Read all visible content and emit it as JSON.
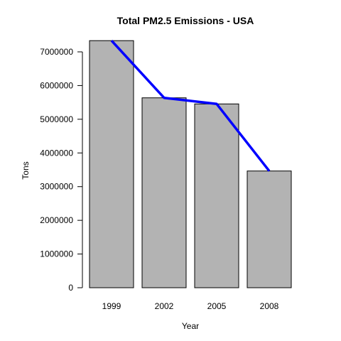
{
  "chart_data": {
    "type": "bar",
    "title": "Total PM2.5 Emissions - USA",
    "xlabel": "Year",
    "ylabel": "Tons",
    "categories": [
      "1999",
      "2002",
      "2005",
      "2008"
    ],
    "values": [
      7332967,
      5635780,
      5454703,
      3464206
    ],
    "line_overlay": true,
    "yticks": [
      0,
      1000000,
      2000000,
      3000000,
      4000000,
      5000000,
      6000000,
      7000000
    ],
    "ytick_labels": [
      "0",
      "1000000",
      "2000000",
      "3000000",
      "4000000",
      "5000000",
      "6000000",
      "7000000"
    ],
    "ylim": [
      0,
      7332967
    ],
    "grid": false,
    "bar_color": "#b3b3b3",
    "bar_border_color": "#000000",
    "line_color": "#0000ff"
  }
}
